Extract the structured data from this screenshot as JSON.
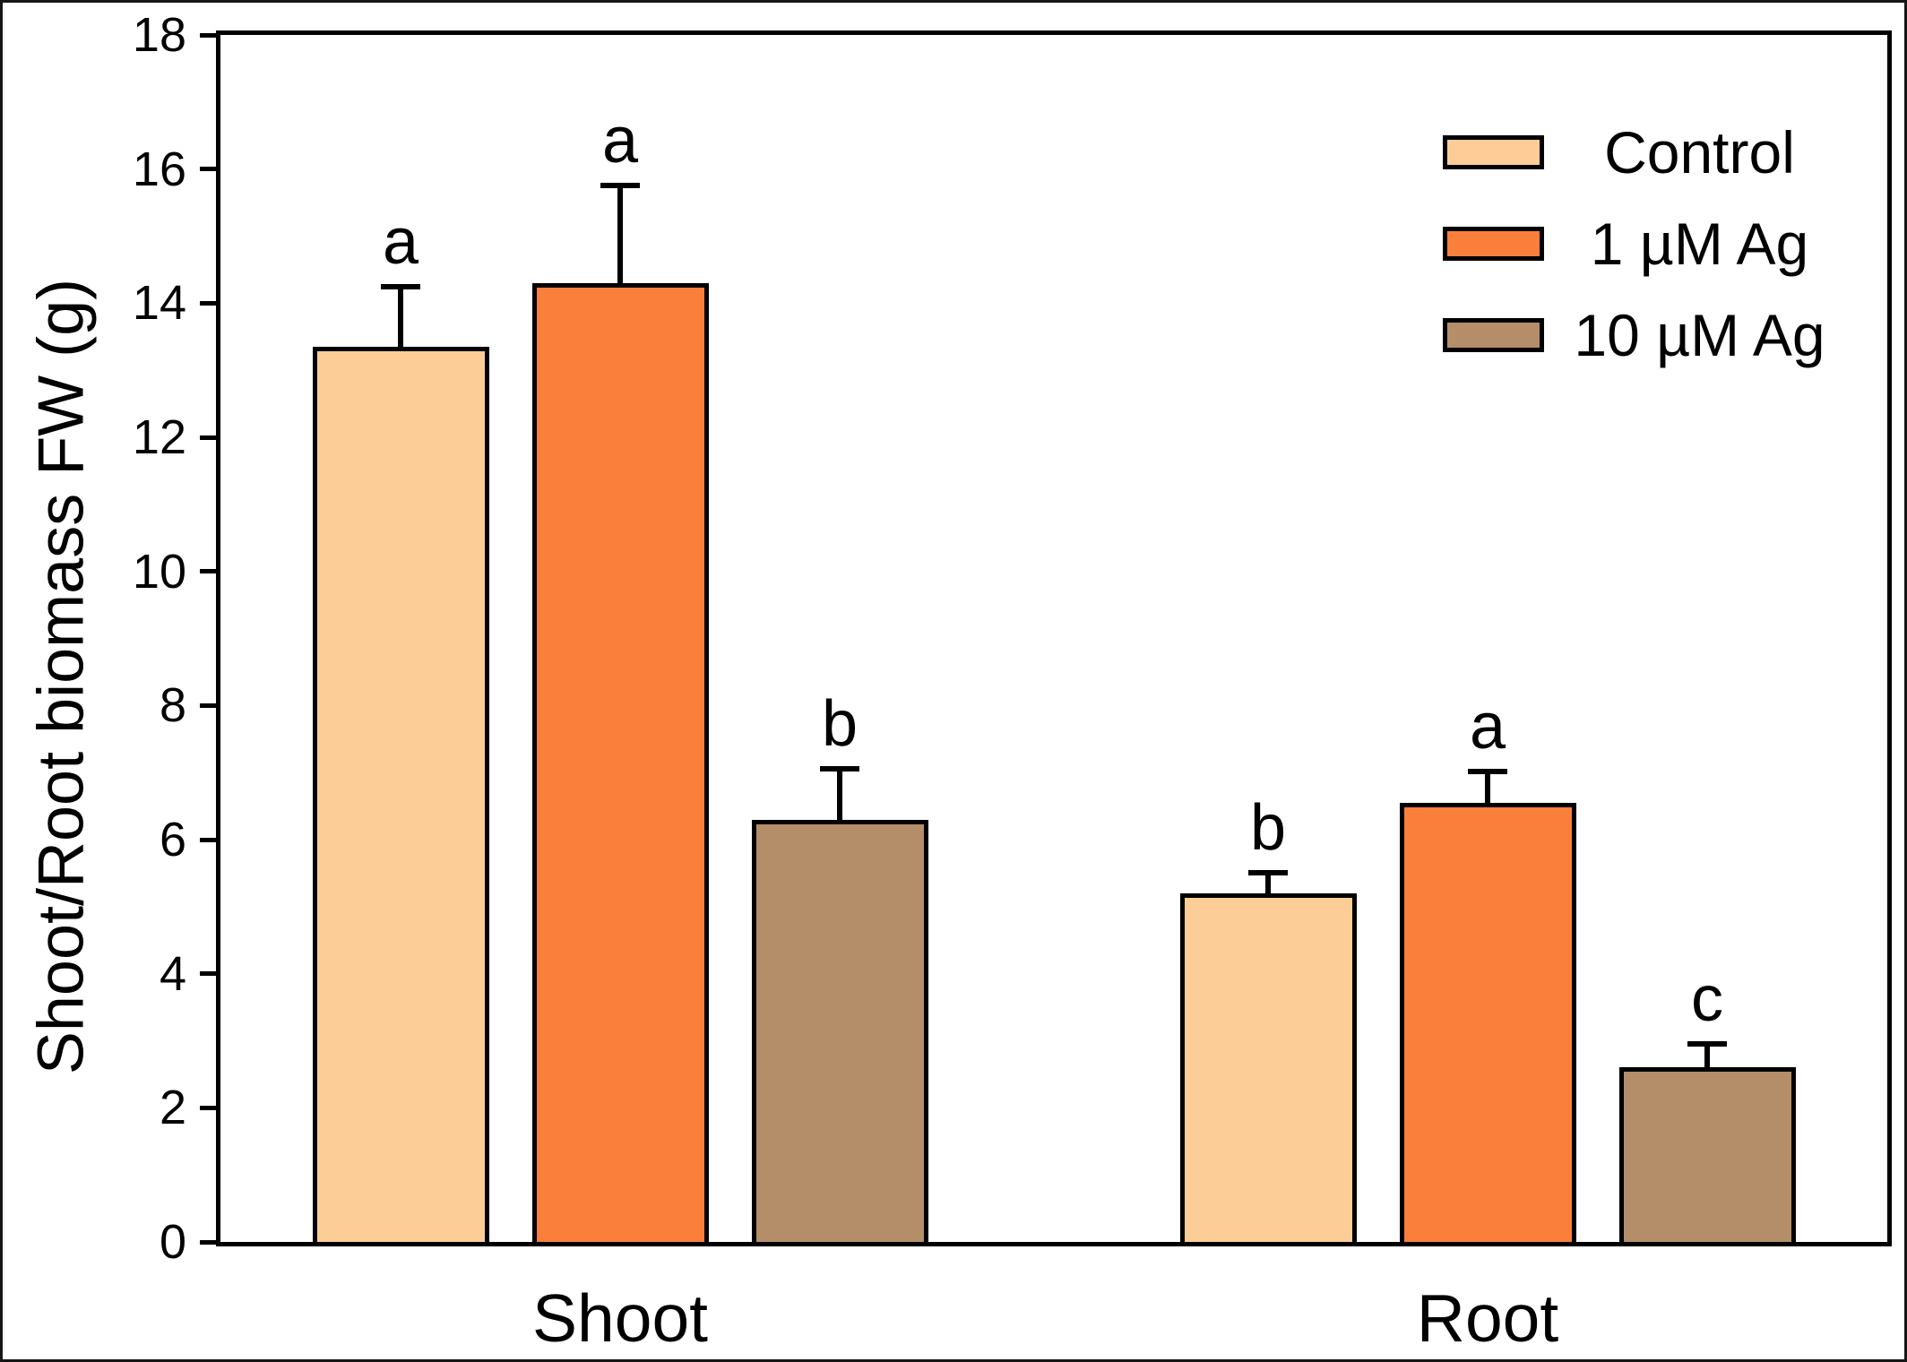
{
  "figure": {
    "background": "#FFFFFF",
    "frame_color": "#000000"
  },
  "chart_data": {
    "type": "bar",
    "title": "",
    "xlabel": "",
    "ylabel": "Shoot/Root biomass FW (g)",
    "ylim": [
      0,
      18
    ],
    "ytick_step": 2,
    "ytick_labels": [
      "0",
      "2",
      "4",
      "6",
      "8",
      "10",
      "12",
      "14",
      "16",
      "18"
    ],
    "grid": false,
    "legend_position": "top-right",
    "categories": [
      "Shoot",
      "Root"
    ],
    "series": [
      {
        "name": "Control",
        "color": "#FDCD98",
        "values": [
          13.35,
          5.2
        ],
        "errors": [
          0.9,
          0.3
        ],
        "sig_letters": [
          "a",
          "b"
        ]
      },
      {
        "name": "1 µM Ag",
        "color": "#FA7F3B",
        "values": [
          14.3,
          6.55
        ],
        "errors": [
          1.45,
          0.47
        ],
        "sig_letters": [
          "a",
          "a"
        ]
      },
      {
        "name": "10 µM Ag",
        "color": "#B48E69",
        "values": [
          6.3,
          2.6
        ],
        "errors": [
          0.75,
          0.35
        ],
        "sig_letters": [
          "b",
          "c"
        ]
      }
    ],
    "error_bar_style": "upper-cap-only",
    "bar_edge_color": "#000000"
  }
}
